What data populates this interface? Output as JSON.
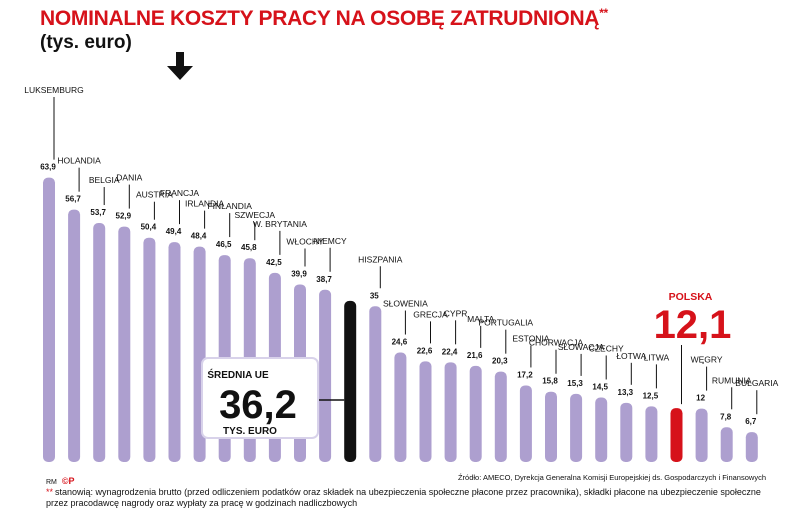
{
  "title": "NOMINALNE KOSZTY PRACY NA OSOBĘ ZATRUDNIONĄ",
  "title_marker": "**",
  "subtitle": "(tys. euro)",
  "chart_data": {
    "type": "bar",
    "categories": [
      "LUKSEMBURG",
      "HOLANDIA",
      "BELGIA",
      "DANIA",
      "AUSTRIA",
      "FRANCJA",
      "IRLANDIA",
      "FINLANDIA",
      "SZWECJA",
      "W. BRYTANIA",
      "WŁOCHY",
      "NIEMCY",
      "ŚREDNIA UE",
      "HISZPANIA",
      "SŁOWENIA",
      "GRECJA",
      "CYPR",
      "MALTA",
      "PORTUGALIA",
      "ESTONIA",
      "CHORWACJA",
      "SŁOWACJA",
      "CZECHY",
      "ŁOTWA",
      "LITWA",
      "POLSKA",
      "WĘGRY",
      "RUMUNIA",
      "BUŁGARIA"
    ],
    "values": [
      63.9,
      56.7,
      53.7,
      52.9,
      50.4,
      49.4,
      48.4,
      46.5,
      45.8,
      42.5,
      39.9,
      38.7,
      36.2,
      35,
      24.6,
      22.6,
      22.4,
      21.6,
      20.3,
      17.2,
      15.8,
      15.3,
      14.5,
      13.3,
      12.5,
      12.1,
      12,
      7.8,
      6.7
    ],
    "value_labels": [
      "63,9",
      "56,7",
      "53,7",
      "52,9",
      "50,4",
      "49,4",
      "48,4",
      "46,5",
      "45,8",
      "42,5",
      "39,9",
      "38,7",
      "36,2",
      "35",
      "24,6",
      "22,6",
      "22,4",
      "21,6",
      "20,3",
      "17,2",
      "15,8",
      "15,3",
      "14,5",
      "13,3",
      "12,5",
      "12,1",
      "12",
      "7,8",
      "6,7"
    ],
    "average_label": "ŚREDNIA UE",
    "average_value": "36,2",
    "average_unit": "TYS. EURO",
    "highlight_label": "POLSKA",
    "highlight_value": "12,1",
    "colors": {
      "default": "#ad9fcf",
      "average": "#111111",
      "highlight": "#d6121a"
    }
  },
  "footer": {
    "agency": "RM",
    "badge": "©P",
    "source": "Źródło: AMECO, Dyrekcja Generalna Komisji Europejskiej ds. Gospodarczych i Finansowych",
    "footnote_marker": "**",
    "footnote": "stanowią: wynagrodzenia brutto (przed odliczeniem podatków oraz składek na ubezpieczenia społeczne płacone przez pracownika), składki płacone na ubezpieczenie społeczne przez pracodawcę nagrody oraz wypłaty za pracę w godzinach nadliczbowych"
  }
}
